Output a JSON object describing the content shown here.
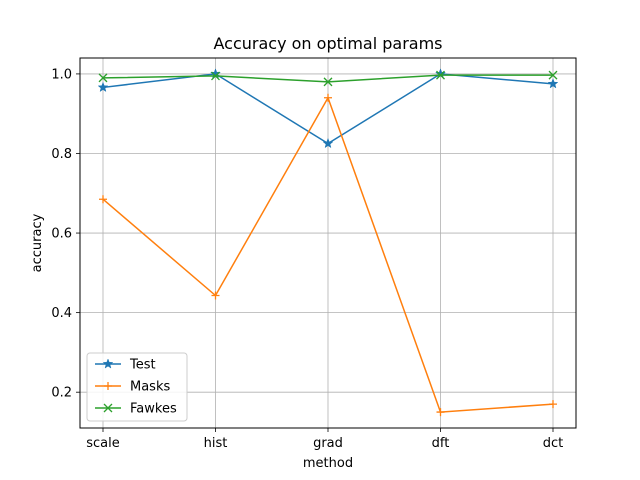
{
  "chart_data": {
    "type": "line",
    "title": "Accuracy on optimal params",
    "xlabel": "method",
    "ylabel": "accuracy",
    "categories": [
      "scale",
      "hist",
      "grad",
      "dft",
      "dct"
    ],
    "ylim": [
      0.11,
      1.04
    ],
    "yticks": [
      0.2,
      0.4,
      0.6,
      0.8,
      1.0
    ],
    "ytick_labels": [
      "0.2",
      "0.4",
      "0.6",
      "0.8",
      "1.0"
    ],
    "grid": true,
    "legend_position": "lower-left",
    "series": [
      {
        "name": "Test",
        "color": "#1f77b4",
        "marker": "star",
        "values": [
          0.966,
          1.0,
          0.825,
          1.0,
          0.975
        ]
      },
      {
        "name": "Masks",
        "color": "#ff7f0e",
        "marker": "plus",
        "values": [
          0.685,
          0.443,
          0.94,
          0.15,
          0.17
        ]
      },
      {
        "name": "Fawkes",
        "color": "#2ca02c",
        "marker": "x",
        "values": [
          0.99,
          0.995,
          0.98,
          0.997,
          0.997
        ]
      }
    ]
  }
}
